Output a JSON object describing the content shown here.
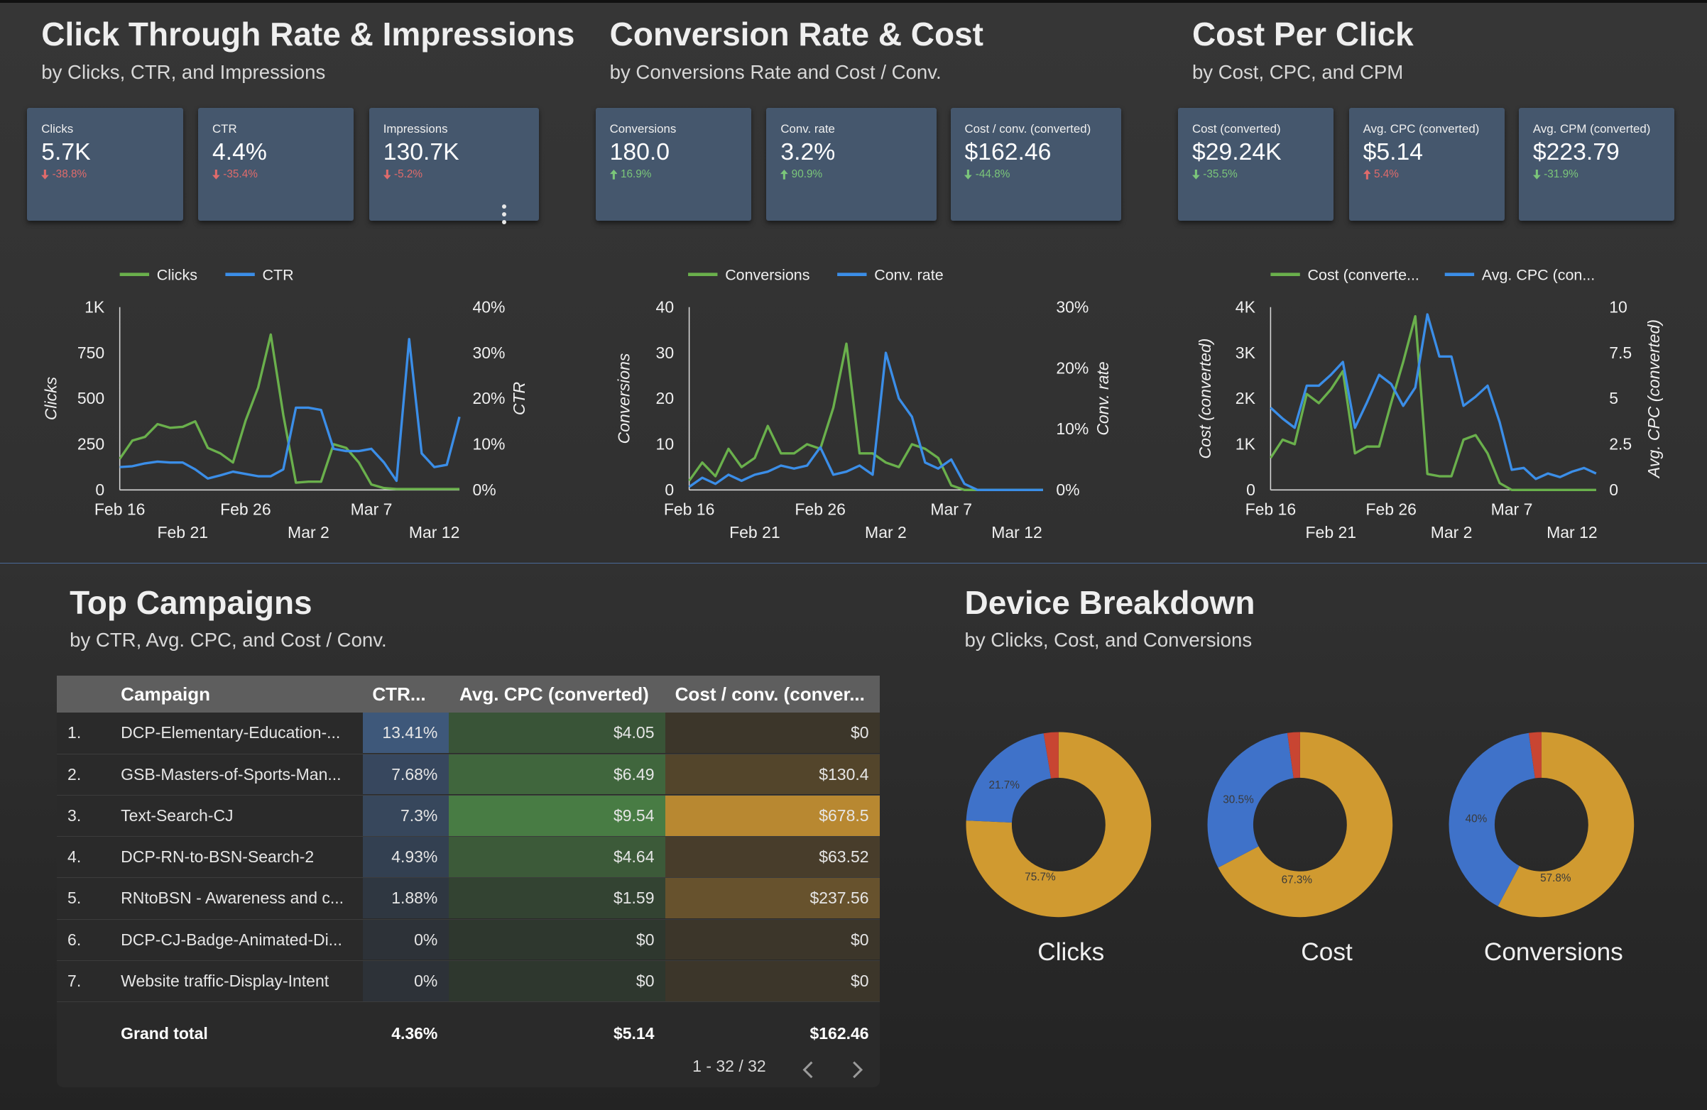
{
  "colors": {
    "green": "#6ab04c",
    "blue": "#3b8ee8",
    "kpi_bg": "#45576d",
    "donut_gold": "#d09a30",
    "donut_blue": "#3f72c9",
    "donut_red": "#c84532"
  },
  "sections": {
    "ctr": {
      "title": "Click Through Rate & Impressions",
      "subtitle": "by Clicks, CTR, and Impressions"
    },
    "conv": {
      "title": "Conversion Rate & Cost",
      "subtitle": "by Conversions Rate and Cost / Conv."
    },
    "cpc": {
      "title": "Cost Per Click",
      "subtitle": "by Cost, CPC, and CPM"
    },
    "campaigns": {
      "title": "Top Campaigns",
      "subtitle": "by CTR, Avg. CPC, and Cost / Conv."
    },
    "device": {
      "title": "Device Breakdown",
      "subtitle": "by Clicks, Cost, and Conversions"
    }
  },
  "kpis": [
    {
      "label": "Clicks",
      "value": "5.7K",
      "delta": "-38.8%",
      "dir": "down",
      "tone": "neg"
    },
    {
      "label": "CTR",
      "value": "4.4%",
      "delta": "-35.4%",
      "dir": "down",
      "tone": "neg"
    },
    {
      "label": "Impressions",
      "value": "130.7K",
      "delta": "-5.2%",
      "dir": "down",
      "tone": "neg"
    },
    {
      "label": "Conversions",
      "value": "180.0",
      "delta": "16.9%",
      "dir": "up",
      "tone": "pos"
    },
    {
      "label": "Conv. rate",
      "value": "3.2%",
      "delta": "90.9%",
      "dir": "up",
      "tone": "pos"
    },
    {
      "label": "Cost / conv. (converted)",
      "value": "$162.46",
      "delta": "-44.8%",
      "dir": "down",
      "tone": "pos"
    },
    {
      "label": "Cost (converted)",
      "value": "$29.24K",
      "delta": "-35.5%",
      "dir": "down",
      "tone": "pos"
    },
    {
      "label": "Avg. CPC (converted)",
      "value": "$5.14",
      "delta": "5.4%",
      "dir": "up",
      "tone": "neg"
    },
    {
      "label": "Avg. CPM (converted)",
      "value": "$223.79",
      "delta": "-31.9%",
      "dir": "down",
      "tone": "pos"
    }
  ],
  "chart_data": [
    {
      "type": "line",
      "legend_position": "top",
      "x_ticks_row1": [
        "Feb 16",
        "Feb 26",
        "Mar 7"
      ],
      "x_ticks_row2": [
        "Feb 21",
        "Mar 2",
        "Mar 12"
      ],
      "ylabel": "Clicks",
      "y2label": "CTR",
      "ylim": [
        0,
        1000
      ],
      "y_ticks": [
        "0",
        "250",
        "500",
        "750",
        "1K"
      ],
      "y2lim": [
        0,
        40
      ],
      "y2_ticks": [
        "0%",
        "10%",
        "20%",
        "30%",
        "40%"
      ],
      "series": [
        {
          "name": "Clicks",
          "axis": "left",
          "color": "#6ab04c",
          "values": [
            170,
            270,
            290,
            360,
            340,
            345,
            375,
            230,
            200,
            150,
            380,
            560,
            850,
            410,
            40,
            45,
            45,
            250,
            230,
            150,
            30,
            10,
            5,
            5,
            5,
            5,
            5,
            5
          ]
        },
        {
          "name": "CTR",
          "axis": "right",
          "color": "#3b8ee8",
          "values": [
            5,
            5.2,
            5.8,
            6.2,
            6,
            6,
            4.5,
            2.5,
            3.2,
            4,
            3.5,
            3,
            3,
            4.5,
            18,
            18,
            17.5,
            9,
            8.5,
            8.5,
            9,
            6,
            2,
            33,
            8,
            5,
            5.5,
            16
          ]
        }
      ]
    },
    {
      "type": "line",
      "legend_position": "top",
      "x_ticks_row1": [
        "Feb 16",
        "Feb 26",
        "Mar 7"
      ],
      "x_ticks_row2": [
        "Feb 21",
        "Mar 2",
        "Mar 12"
      ],
      "ylabel": "Conversions",
      "y2label": "Conv. rate",
      "ylim": [
        0,
        40
      ],
      "y_ticks": [
        "0",
        "10",
        "20",
        "30",
        "40"
      ],
      "y2lim": [
        0,
        30
      ],
      "y2_ticks": [
        "0%",
        "10%",
        "20%",
        "30%"
      ],
      "series": [
        {
          "name": "Conversions",
          "axis": "left",
          "color": "#6ab04c",
          "values": [
            2,
            6,
            3,
            9,
            5,
            7,
            14,
            8,
            8,
            10,
            9,
            18,
            32,
            8,
            8,
            6,
            5,
            10,
            9,
            7,
            1,
            0,
            0,
            0,
            0,
            0,
            0,
            0
          ]
        },
        {
          "name": "Conv. rate",
          "axis": "right",
          "color": "#3b8ee8",
          "values": [
            0.5,
            2,
            1,
            2.5,
            1.5,
            2.5,
            3,
            4,
            3.5,
            4,
            7,
            2.5,
            3,
            4,
            2.5,
            22.5,
            15,
            12,
            4.5,
            3.5,
            5,
            1,
            0,
            0,
            0,
            0,
            0,
            0
          ]
        }
      ]
    },
    {
      "type": "line",
      "legend_position": "top",
      "x_ticks_row1": [
        "Feb 16",
        "Feb 26",
        "Mar 7"
      ],
      "x_ticks_row2": [
        "Feb 21",
        "Mar 2",
        "Mar 12"
      ],
      "ylabel": "Cost (converted)",
      "y2label": "Avg. CPC (converted)",
      "ylim": [
        0,
        4000
      ],
      "y_ticks": [
        "0",
        "1K",
        "2K",
        "3K",
        "4K"
      ],
      "y2lim": [
        0,
        10
      ],
      "y2_ticks": [
        "0",
        "2.5",
        "5",
        "7.5",
        "10"
      ],
      "series": [
        {
          "name": "Cost (converte...",
          "axis": "left",
          "color": "#6ab04c",
          "values": [
            700,
            1100,
            1000,
            2100,
            1900,
            2200,
            2600,
            800,
            950,
            950,
            1900,
            2800,
            3800,
            350,
            300,
            300,
            1100,
            1200,
            800,
            150,
            0,
            0,
            0,
            0,
            0,
            0,
            0,
            0
          ]
        },
        {
          "name": "Avg. CPC (con...",
          "axis": "right",
          "color": "#3b8ee8",
          "values": [
            4.5,
            3.9,
            3.4,
            5.7,
            5.7,
            6.3,
            7,
            3.4,
            4.8,
            6.3,
            5.8,
            4.6,
            5.6,
            9.6,
            7.3,
            7.3,
            4.6,
            5.1,
            5.7,
            3.7,
            1.1,
            1.2,
            0.6,
            0.9,
            0.7,
            1,
            1.2,
            0.9
          ]
        }
      ]
    },
    {
      "type": "pie",
      "title": "Clicks",
      "slices": [
        {
          "label": "75.7%",
          "value": 75.7,
          "color": "#d09a30"
        },
        {
          "label": "21.7%",
          "value": 21.7,
          "color": "#3f72c9"
        },
        {
          "label": "",
          "value": 2.6,
          "color": "#c84532"
        }
      ]
    },
    {
      "type": "pie",
      "title": "Cost",
      "slices": [
        {
          "label": "67.3%",
          "value": 67.3,
          "color": "#d09a30"
        },
        {
          "label": "30.5%",
          "value": 30.5,
          "color": "#3f72c9"
        },
        {
          "label": "",
          "value": 2.2,
          "color": "#c84532"
        }
      ]
    },
    {
      "type": "pie",
      "title": "Conversions",
      "slices": [
        {
          "label": "57.8%",
          "value": 57.8,
          "color": "#d09a30"
        },
        {
          "label": "40%",
          "value": 40,
          "color": "#3f72c9"
        },
        {
          "label": "",
          "value": 2.2,
          "color": "#c84532"
        }
      ]
    }
  ],
  "table": {
    "columns": [
      "Campaign",
      "CTR...",
      "Avg. CPC (converted)",
      "Cost / conv. (conver..."
    ],
    "rows": [
      {
        "idx": "1.",
        "name": "DCP-Elementary-Education-...",
        "ctr": "13.41%",
        "cpc": "$4.05",
        "cost": "$0",
        "ctr_pct": 100,
        "cpc_pct": 42,
        "cost_pct": 0
      },
      {
        "idx": "2.",
        "name": "GSB-Masters-of-Sports-Man...",
        "ctr": "7.68%",
        "cpc": "$6.49",
        "cost": "$130.4",
        "ctr_pct": 57,
        "cpc_pct": 68,
        "cost_pct": 19
      },
      {
        "idx": "3.",
        "name": "Text-Search-CJ",
        "ctr": "7.3%",
        "cpc": "$9.54",
        "cost": "$678.5",
        "ctr_pct": 54,
        "cpc_pct": 100,
        "cost_pct": 100
      },
      {
        "idx": "4.",
        "name": "DCP-RN-to-BSN-Search-2",
        "ctr": "4.93%",
        "cpc": "$4.64",
        "cost": "$63.52",
        "ctr_pct": 37,
        "cpc_pct": 49,
        "cost_pct": 9
      },
      {
        "idx": "5.",
        "name": "RNtoBSN - Awareness and c...",
        "ctr": "1.88%",
        "cpc": "$1.59",
        "cost": "$237.56",
        "ctr_pct": 14,
        "cpc_pct": 17,
        "cost_pct": 35
      },
      {
        "idx": "6.",
        "name": "DCP-CJ-Badge-Animated-Di...",
        "ctr": "0%",
        "cpc": "$0",
        "cost": "$0",
        "ctr_pct": 0,
        "cpc_pct": 0,
        "cost_pct": 0
      },
      {
        "idx": "7.",
        "name": "Website traffic-Display-Intent",
        "ctr": "0%",
        "cpc": "$0",
        "cost": "$0",
        "ctr_pct": 0,
        "cpc_pct": 0,
        "cost_pct": 0
      }
    ],
    "total": {
      "label": "Grand total",
      "ctr": "4.36%",
      "cpc": "$5.14",
      "cost": "$162.46"
    },
    "pagination": "1 - 32 / 32"
  },
  "icons": {
    "prev": "chevron-left-icon",
    "next": "chevron-right-icon",
    "menu": "more-vert-icon"
  }
}
